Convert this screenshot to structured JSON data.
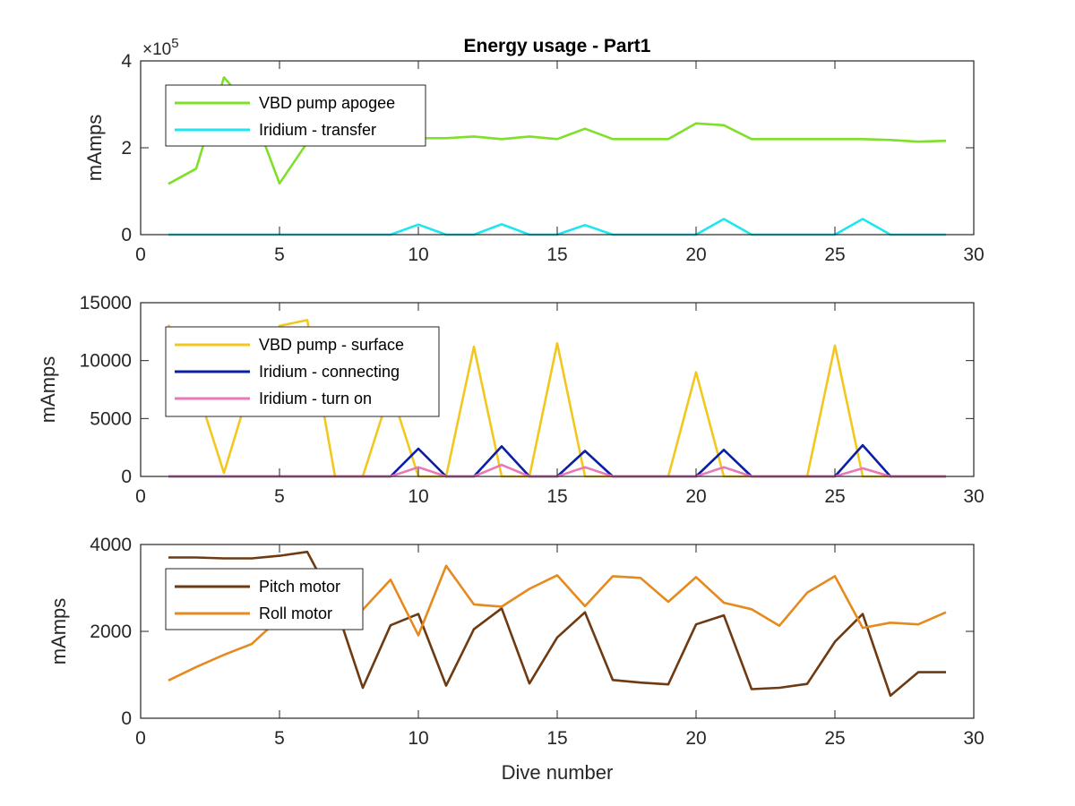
{
  "chart_data": [
    {
      "type": "line",
      "title": "Energy usage - Part1",
      "xlabel": "",
      "ylabel": "mAmps",
      "xlim": [
        0,
        30
      ],
      "ylim": [
        0,
        400000
      ],
      "xticks": [
        0,
        5,
        10,
        15,
        20,
        25,
        30
      ],
      "yticks": [
        0,
        200000,
        400000
      ],
      "ytick_labels": [
        "0",
        "2",
        "4"
      ],
      "y_exponent_label": "×10",
      "y_exponent_power": "5",
      "legend_position": "top-left",
      "grid": false,
      "x": [
        1,
        2,
        3,
        4,
        5,
        6,
        7,
        8,
        9,
        10,
        11,
        12,
        13,
        14,
        15,
        16,
        17,
        18,
        19,
        20,
        21,
        22,
        23,
        24,
        25,
        26,
        27,
        28,
        29
      ],
      "series": [
        {
          "name": "VBD pump apogee",
          "color": "#7fe02a",
          "values": [
            117000,
            152000,
            362000,
            288000,
            118000,
            212000,
            228000,
            222000,
            222000,
            222000,
            222000,
            226000,
            220000,
            226000,
            220000,
            244000,
            220000,
            220000,
            220000,
            256000,
            252000,
            220000,
            220000,
            220000,
            220000,
            220000,
            218000,
            214000,
            216000
          ]
        },
        {
          "name": "Iridium - transfer",
          "color": "#1ee6f0",
          "values": [
            0,
            0,
            0,
            0,
            0,
            0,
            0,
            0,
            0,
            23000,
            0,
            0,
            24000,
            0,
            0,
            22000,
            0,
            0,
            0,
            0,
            36000,
            0,
            0,
            0,
            0,
            36000,
            0,
            0,
            0
          ]
        }
      ]
    },
    {
      "type": "line",
      "title": "",
      "xlabel": "",
      "ylabel": "mAmps",
      "xlim": [
        0,
        30
      ],
      "ylim": [
        0,
        15000
      ],
      "xticks": [
        0,
        5,
        10,
        15,
        20,
        25,
        30
      ],
      "yticks": [
        0,
        5000,
        10000,
        15000
      ],
      "ytick_labels": [
        "0",
        "5000",
        "10000",
        "15000"
      ],
      "legend_position": "top-left",
      "grid": false,
      "x": [
        1,
        2,
        3,
        4,
        5,
        6,
        7,
        8,
        9,
        10,
        11,
        12,
        13,
        14,
        15,
        16,
        17,
        18,
        19,
        20,
        21,
        22,
        23,
        24,
        25,
        26,
        27,
        28,
        29
      ],
      "series": [
        {
          "name": "VBD pump - surface",
          "color": "#f2c81e",
          "values": [
            13100,
            7800,
            300,
            8200,
            13000,
            13500,
            0,
            0,
            7500,
            0,
            0,
            11200,
            0,
            0,
            11500,
            0,
            0,
            0,
            0,
            9000,
            0,
            0,
            0,
            0,
            11300,
            0,
            0,
            0,
            0
          ]
        },
        {
          "name": "Iridium - connecting",
          "color": "#0a1fa3",
          "values": [
            0,
            0,
            0,
            0,
            0,
            0,
            0,
            0,
            0,
            2400,
            0,
            0,
            2600,
            0,
            0,
            2200,
            0,
            0,
            0,
            0,
            2300,
            0,
            0,
            0,
            0,
            2700,
            0,
            0,
            0
          ]
        },
        {
          "name": "Iridium - turn on",
          "color": "#e878b8",
          "values": [
            0,
            0,
            0,
            0,
            0,
            0,
            0,
            0,
            0,
            800,
            0,
            0,
            1000,
            0,
            0,
            800,
            0,
            0,
            0,
            0,
            800,
            0,
            0,
            0,
            0,
            700,
            0,
            0,
            0
          ]
        }
      ]
    },
    {
      "type": "line",
      "title": "",
      "xlabel": "Dive number",
      "ylabel": "mAmps",
      "xlim": [
        0,
        30
      ],
      "ylim": [
        0,
        4000
      ],
      "xticks": [
        0,
        5,
        10,
        15,
        20,
        25,
        30
      ],
      "yticks": [
        0,
        2000,
        4000
      ],
      "ytick_labels": [
        "0",
        "2000",
        "4000"
      ],
      "legend_position": "top-left",
      "grid": false,
      "x": [
        1,
        2,
        3,
        4,
        5,
        6,
        7,
        8,
        9,
        10,
        11,
        12,
        13,
        14,
        15,
        16,
        17,
        18,
        19,
        20,
        21,
        22,
        23,
        24,
        25,
        26,
        27,
        28,
        29
      ],
      "series": [
        {
          "name": "Pitch motor",
          "color": "#6e3a12",
          "values": [
            3700,
            3700,
            3680,
            3680,
            3740,
            3830,
            2620,
            700,
            2140,
            2400,
            750,
            2050,
            2530,
            800,
            1860,
            2440,
            880,
            820,
            780,
            2160,
            2370,
            670,
            700,
            790,
            1760,
            2400,
            520,
            1060,
            1060
          ]
        },
        {
          "name": "Roll motor",
          "color": "#e58a1f",
          "values": [
            870,
            1180,
            1460,
            1710,
            2300,
            2700,
            2240,
            2500,
            3190,
            1910,
            3510,
            2620,
            2570,
            2980,
            3290,
            2580,
            3270,
            3230,
            2680,
            3250,
            2660,
            2510,
            2130,
            2890,
            3270,
            2080,
            2200,
            2160,
            2440
          ]
        }
      ]
    }
  ]
}
